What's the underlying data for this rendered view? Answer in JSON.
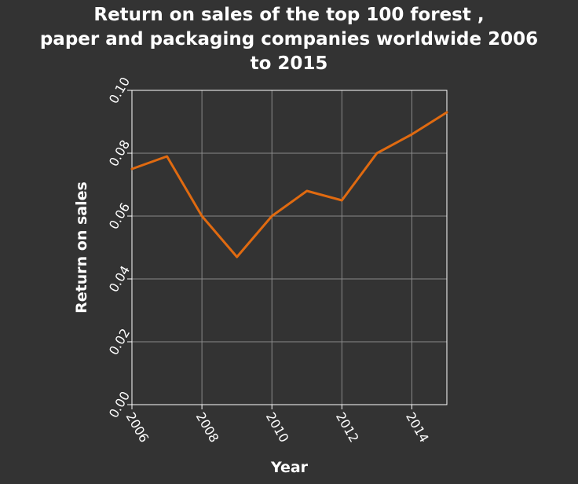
{
  "chart_data": {
    "type": "line",
    "title": "Return on sales of the top 100 forest ,\npaper and packaging companies worldwide 2006\nto 2015",
    "xlabel": "Year",
    "ylabel": "Return on sales",
    "x": [
      2006,
      2007,
      2008,
      2009,
      2010,
      2011,
      2012,
      2013,
      2014,
      2015
    ],
    "series": [
      {
        "values": [
          0.075,
          0.079,
          0.06,
          0.047,
          0.06,
          0.068,
          0.065,
          0.08,
          0.086,
          0.093
        ]
      }
    ],
    "xlim": [
      2006,
      2015
    ],
    "ylim": [
      0,
      0.1
    ],
    "xticks": [
      "2006",
      "2008",
      "2010",
      "2012",
      "2014"
    ],
    "yticks": [
      "0.00",
      "0.02",
      "0.04",
      "0.06",
      "0.08",
      "0.10"
    ],
    "grid": true,
    "colors": {
      "background": "#333333",
      "line": "#e06a10",
      "grid": "#8a8a8a",
      "axis": "#ffffff"
    }
  }
}
